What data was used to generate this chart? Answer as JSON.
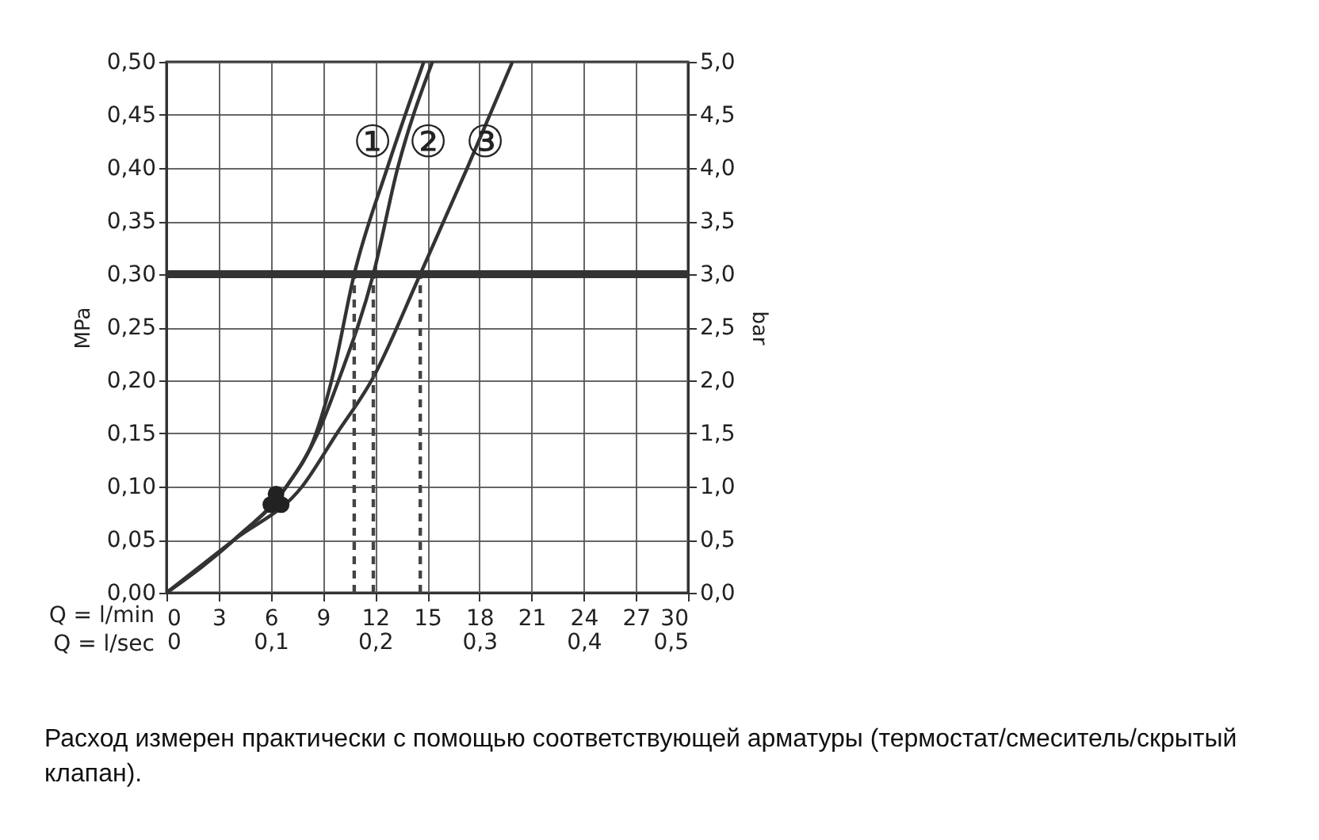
{
  "chart_data": {
    "type": "line",
    "xlabel": "Q = l/min",
    "x2label": "Q = l/sec",
    "ylabel": "MPa",
    "y2label": "bar",
    "xlim": [
      0,
      30
    ],
    "xticks": [
      0,
      3,
      6,
      9,
      12,
      15,
      18,
      21,
      24,
      27,
      30
    ],
    "x2lim": [
      0,
      0.5
    ],
    "x2ticks": [
      0,
      {
        "value": 0.1,
        "label": "0,1"
      },
      {
        "value": 0.2,
        "label": "0,2"
      },
      {
        "value": 0.3,
        "label": "0,3"
      },
      {
        "value": 0.4,
        "label": "0,4"
      },
      {
        "value": 0.5,
        "label": "0,5"
      }
    ],
    "ylim": [
      0,
      0.5
    ],
    "yticks": [
      {
        "value": 0,
        "label": "0,00"
      },
      {
        "value": 0.05,
        "label": "0,05"
      },
      {
        "value": 0.1,
        "label": "0,10"
      },
      {
        "value": 0.15,
        "label": "0,15"
      },
      {
        "value": 0.2,
        "label": "0,20"
      },
      {
        "value": 0.25,
        "label": "0,25"
      },
      {
        "value": 0.3,
        "label": "0,30"
      },
      {
        "value": 0.35,
        "label": "0,35"
      },
      {
        "value": 0.4,
        "label": "0,40"
      },
      {
        "value": 0.45,
        "label": "0,45"
      },
      {
        "value": 0.5,
        "label": "0,50"
      }
    ],
    "y2lim": [
      0,
      5
    ],
    "y2ticks": [
      {
        "value": 0,
        "label": "0,0"
      },
      {
        "value": 0.5,
        "label": "0,5"
      },
      {
        "value": 1,
        "label": "1,0"
      },
      {
        "value": 1.5,
        "label": "1,5"
      },
      {
        "value": 2,
        "label": "2,0"
      },
      {
        "value": 2.5,
        "label": "2,5"
      },
      {
        "value": 3,
        "label": "3,0"
      },
      {
        "value": 3.5,
        "label": "3,5"
      },
      {
        "value": 4,
        "label": "4,0"
      },
      {
        "value": 4.5,
        "label": "4,5"
      },
      {
        "value": 5,
        "label": "5,0"
      }
    ],
    "grid": true,
    "series": [
      {
        "type": "line",
        "color": "#333333",
        "x": [
          0,
          3.9,
          6.9,
          8.6,
          9.5,
          10.8,
          12.7,
          14.8
        ],
        "values": [
          0,
          0.05,
          0.1,
          0.15,
          0.2,
          0.3,
          0.4,
          0.5
        ]
      },
      {
        "type": "line",
        "color": "#333333",
        "x": [
          0,
          3.9,
          6.9,
          8.7,
          9.9,
          11.9,
          13.3,
          15.3
        ],
        "values": [
          0,
          0.05,
          0.1,
          0.15,
          0.2,
          0.3,
          0.4,
          0.5
        ]
      },
      {
        "type": "line",
        "color": "#333333",
        "x": [
          0,
          3.9,
          7.8,
          9.8,
          11.8,
          14.6,
          17.3,
          19.9
        ],
        "values": [
          0,
          0.05,
          0.1,
          0.15,
          0.2,
          0.3,
          0.4,
          0.5
        ]
      },
      {
        "type": "line",
        "color": "#444444",
        "line_style": "dashed",
        "x": [
          10.8,
          10.8
        ],
        "values": [
          0,
          0.3
        ]
      },
      {
        "type": "line",
        "color": "#444444",
        "line_style": "dashed",
        "x": [
          11.9,
          11.9
        ],
        "values": [
          0,
          0.3
        ]
      },
      {
        "type": "line",
        "color": "#444444",
        "line_style": "dashed",
        "x": [
          14.6,
          14.6
        ],
        "values": [
          0,
          0.3
        ]
      },
      {
        "type": "scatter",
        "color": "#222222",
        "marker": "circle",
        "x": [
          6.0,
          6.6,
          6.3
        ],
        "values": [
          0.083,
          0.083,
          0.093
        ]
      }
    ],
    "ref_lines": [
      {
        "axis": "y",
        "value": 0.3,
        "color": "#333333"
      }
    ],
    "annotations": [
      "①",
      "②",
      "③",
      "Расход измерен практически с помощью соответствующей арматуры (термостат/смеситель/скрытый клапан)."
    ]
  }
}
